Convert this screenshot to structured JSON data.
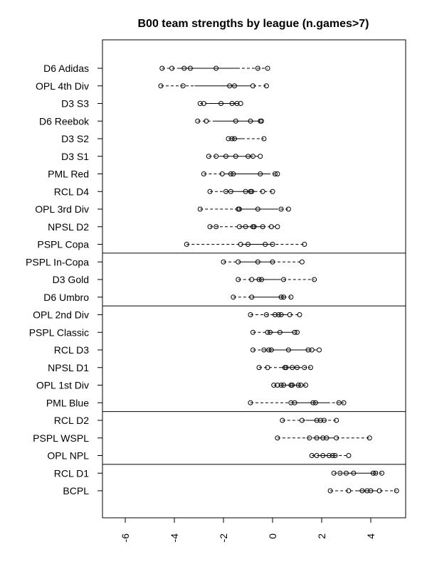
{
  "chart_data": {
    "type": "scatter",
    "title": "B00 team strengths by league (n.games>7)",
    "xlabel": "",
    "ylabel": "",
    "xlim": [
      -6.8,
      5.5
    ],
    "xticks": [
      -6,
      -4,
      -2,
      0,
      2,
      4
    ],
    "xtick_labels": [
      "-6",
      "-4",
      "-2",
      "0",
      "2",
      "4"
    ],
    "group_separators_after": [
      "PSPL Copa",
      "D6 Umbro",
      "PML Blue",
      "OPL NPL"
    ],
    "leagues": [
      {
        "name": "D6 Adidas",
        "values": [
          -4.5,
          -4.1,
          -3.6,
          -3.35,
          -2.3,
          -0.6,
          -0.2
        ]
      },
      {
        "name": "OPL 4th Div",
        "values": [
          -4.55,
          -3.65,
          -1.75,
          -1.55,
          -0.8,
          -0.25
        ]
      },
      {
        "name": "D3 S3",
        "values": [
          -2.95,
          -2.8,
          -2.1,
          -1.65,
          -1.45,
          -1.3
        ]
      },
      {
        "name": "D6 Reebok",
        "values": [
          -3.05,
          -2.7,
          -1.5,
          -0.9,
          -0.5,
          -0.45
        ]
      },
      {
        "name": "D3 S2",
        "values": [
          -1.8,
          -1.65,
          -1.55,
          -0.35
        ]
      },
      {
        "name": "D3 S1",
        "values": [
          -2.6,
          -2.3,
          -1.9,
          -1.5,
          -1.0,
          -0.8,
          -0.5
        ]
      },
      {
        "name": "PML Red",
        "values": [
          -2.8,
          -2.05,
          -1.7,
          -1.6,
          -0.5,
          0.1,
          0.2
        ]
      },
      {
        "name": "RCL D4",
        "values": [
          -2.55,
          -1.9,
          -1.7,
          -1.1,
          -0.9,
          -0.85,
          -0.4,
          0.0
        ]
      },
      {
        "name": "OPL 3rd Div",
        "values": [
          -2.95,
          -1.4,
          -1.35,
          -0.6,
          0.35,
          0.65
        ]
      },
      {
        "name": "NPSL D2",
        "values": [
          -2.55,
          -2.3,
          -1.35,
          -1.1,
          -0.8,
          -0.75,
          -0.4,
          -0.05,
          0.2
        ]
      },
      {
        "name": "PSPL Copa",
        "values": [
          -3.5,
          -1.3,
          -1.0,
          -0.3,
          0.0,
          1.3
        ]
      },
      {
        "name": "PSPL In-Copa",
        "values": [
          -2.0,
          -1.4,
          -0.6,
          0.0,
          1.2
        ]
      },
      {
        "name": "D3 Gold",
        "values": [
          -1.4,
          -0.85,
          -0.55,
          -0.45,
          0.45,
          1.7
        ]
      },
      {
        "name": "D6 Umbro",
        "values": [
          -1.6,
          -0.85,
          0.35,
          0.45,
          0.75
        ]
      },
      {
        "name": "OPL 2nd Div",
        "values": [
          -0.9,
          -0.25,
          0.1,
          0.25,
          0.35,
          0.7,
          1.1
        ]
      },
      {
        "name": "PSPL Classic",
        "values": [
          -0.8,
          -0.2,
          -0.1,
          0.3,
          0.9,
          1.0
        ]
      },
      {
        "name": "RCL D3",
        "values": [
          -0.8,
          -0.35,
          -0.15,
          -0.05,
          0.65,
          1.45,
          1.6,
          1.9
        ]
      },
      {
        "name": "NPSL D1",
        "values": [
          -0.55,
          -0.2,
          0.5,
          0.55,
          0.8,
          1.0,
          1.3,
          1.55
        ]
      },
      {
        "name": "OPL 1st Div",
        "values": [
          0.05,
          0.2,
          0.35,
          0.45,
          0.75,
          0.8,
          1.05,
          1.15,
          1.35
        ]
      },
      {
        "name": "PML Blue",
        "values": [
          -0.9,
          0.75,
          0.9,
          1.65,
          1.75,
          2.7,
          2.9
        ]
      },
      {
        "name": "RCL D2",
        "values": [
          0.4,
          1.2,
          1.8,
          1.95,
          2.1,
          2.6
        ]
      },
      {
        "name": "PSPL WSPL",
        "values": [
          0.2,
          1.5,
          1.8,
          2.05,
          2.2,
          2.6,
          3.95
        ]
      },
      {
        "name": "OPL NPL",
        "values": [
          1.6,
          1.8,
          2.05,
          2.3,
          2.45,
          2.55,
          3.1
        ]
      },
      {
        "name": "RCL D1",
        "values": [
          2.5,
          2.75,
          3.0,
          3.3,
          4.1,
          4.2,
          4.45
        ]
      },
      {
        "name": "BCPL",
        "values": [
          2.35,
          3.1,
          3.65,
          3.85,
          4.0,
          4.35,
          5.05
        ]
      }
    ]
  }
}
